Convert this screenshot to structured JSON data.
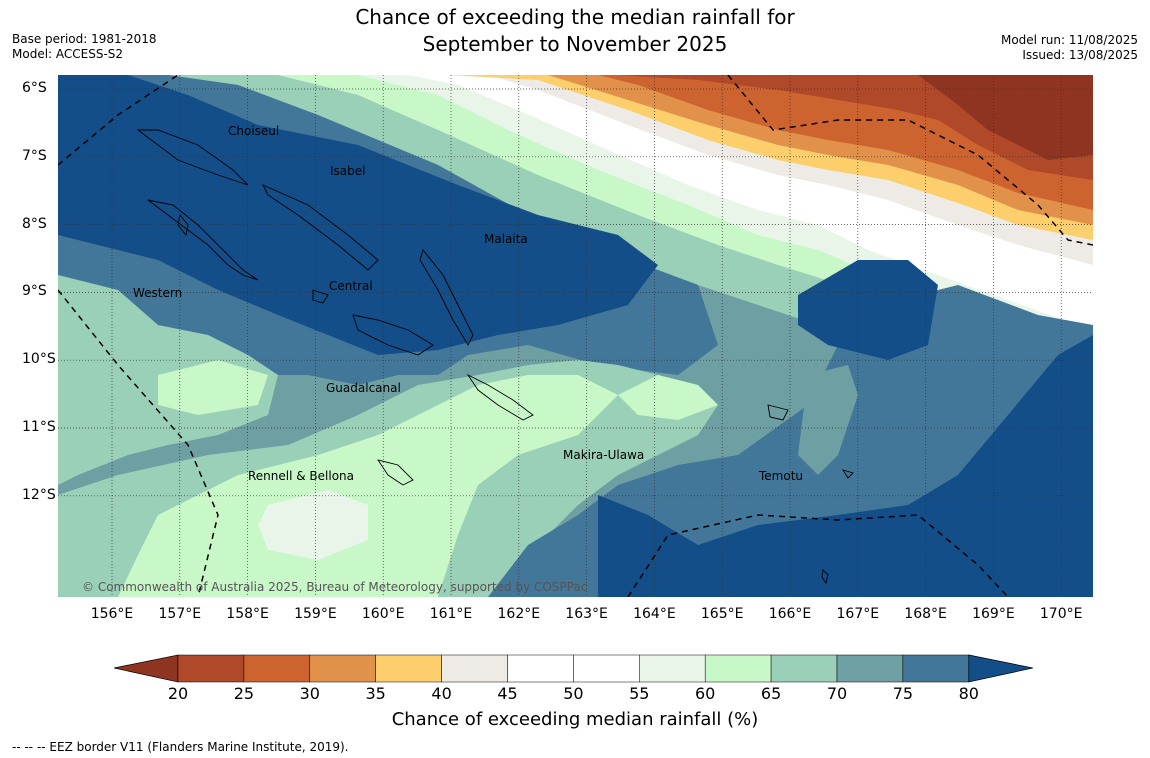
{
  "title_line1": "Chance of exceeding the median rainfall for",
  "title_line2": "September to November 2025",
  "base_period": "Base period: 1981-2018",
  "model": "Model: ACCESS-S2",
  "model_run": "Model run: 11/08/2025",
  "issued": "Issued: 13/08/2025",
  "x_ticks": [
    "156°E",
    "157°E",
    "158°E",
    "159°E",
    "160°E",
    "161°E",
    "162°E",
    "163°E",
    "164°E",
    "165°E",
    "166°E",
    "167°E",
    "168°E",
    "169°E",
    "170°E"
  ],
  "y_ticks": [
    "6°S",
    "7°S",
    "8°S",
    "9°S",
    "10°S",
    "11°S",
    "12°S"
  ],
  "places": {
    "choiseul": "Choiseul",
    "isabel": "Isabel",
    "malaita": "Malaita",
    "western": "Western",
    "central": "Central",
    "guadalcanal": "Guadalcanal",
    "makira": "Makira-Ulawa",
    "rennell": "Rennell & Bellona",
    "temotu": "Temotu"
  },
  "copyright": "© Commonwealth of Australia 2025, Bureau of Meteorology, supported by COSPPac",
  "colorbar": {
    "title": "Chance of exceeding median rainfall (%)",
    "labels": [
      "20",
      "25",
      "30",
      "35",
      "40",
      "45",
      "50",
      "55",
      "60",
      "65",
      "70",
      "75",
      "80"
    ],
    "colors": [
      "#8f3420",
      "#b0482a",
      "#cd6430",
      "#e2914a",
      "#fdcf6c",
      "#eeebe6",
      "#ffffff",
      "#ffffff",
      "#e9f5e8",
      "#c8f7c8",
      "#9bd0b8",
      "#6e9fa3",
      "#42779a",
      "#134e89"
    ]
  },
  "footnote": "--  --  -- EEZ border V11 (Flanders Marine Institute, 2019)."
}
